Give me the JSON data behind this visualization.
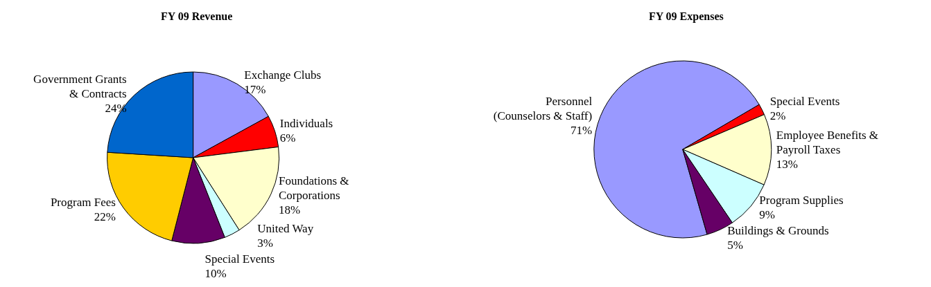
{
  "chart_data": [
    {
      "type": "pie",
      "title": "FY 09 Revenue",
      "categories": [
        "Exchange Clubs",
        "Individuals",
        "Foundations &\nCorporations",
        "United Way",
        "Special Events",
        "Program Fees",
        "Government Grants\n& Contracts"
      ],
      "values": [
        17,
        6,
        18,
        3,
        10,
        22,
        24
      ],
      "value_labels": [
        "17%",
        "6%",
        "18%",
        "3%",
        "10%",
        "22%",
        "24%"
      ],
      "colors": [
        "#9999ff",
        "#ff0000",
        "#ffffcc",
        "#ccffff",
        "#660066",
        "#ffcc00",
        "#0066cc"
      ],
      "legend": false
    },
    {
      "type": "pie",
      "title": "FY 09 Expenses",
      "categories": [
        "Personnel\n(Counselors & Staff)",
        "Special Events",
        "Employee Benefits &\nPayroll Taxes",
        "Program Supplies",
        "Buildings & Grounds"
      ],
      "values": [
        71,
        2,
        13,
        9,
        5
      ],
      "value_labels": [
        "71%",
        "2%",
        "13%",
        "9%",
        "5%"
      ],
      "colors": [
        "#9999ff",
        "#ff0000",
        "#ffffcc",
        "#ccffff",
        "#660066"
      ],
      "legend": false
    }
  ]
}
